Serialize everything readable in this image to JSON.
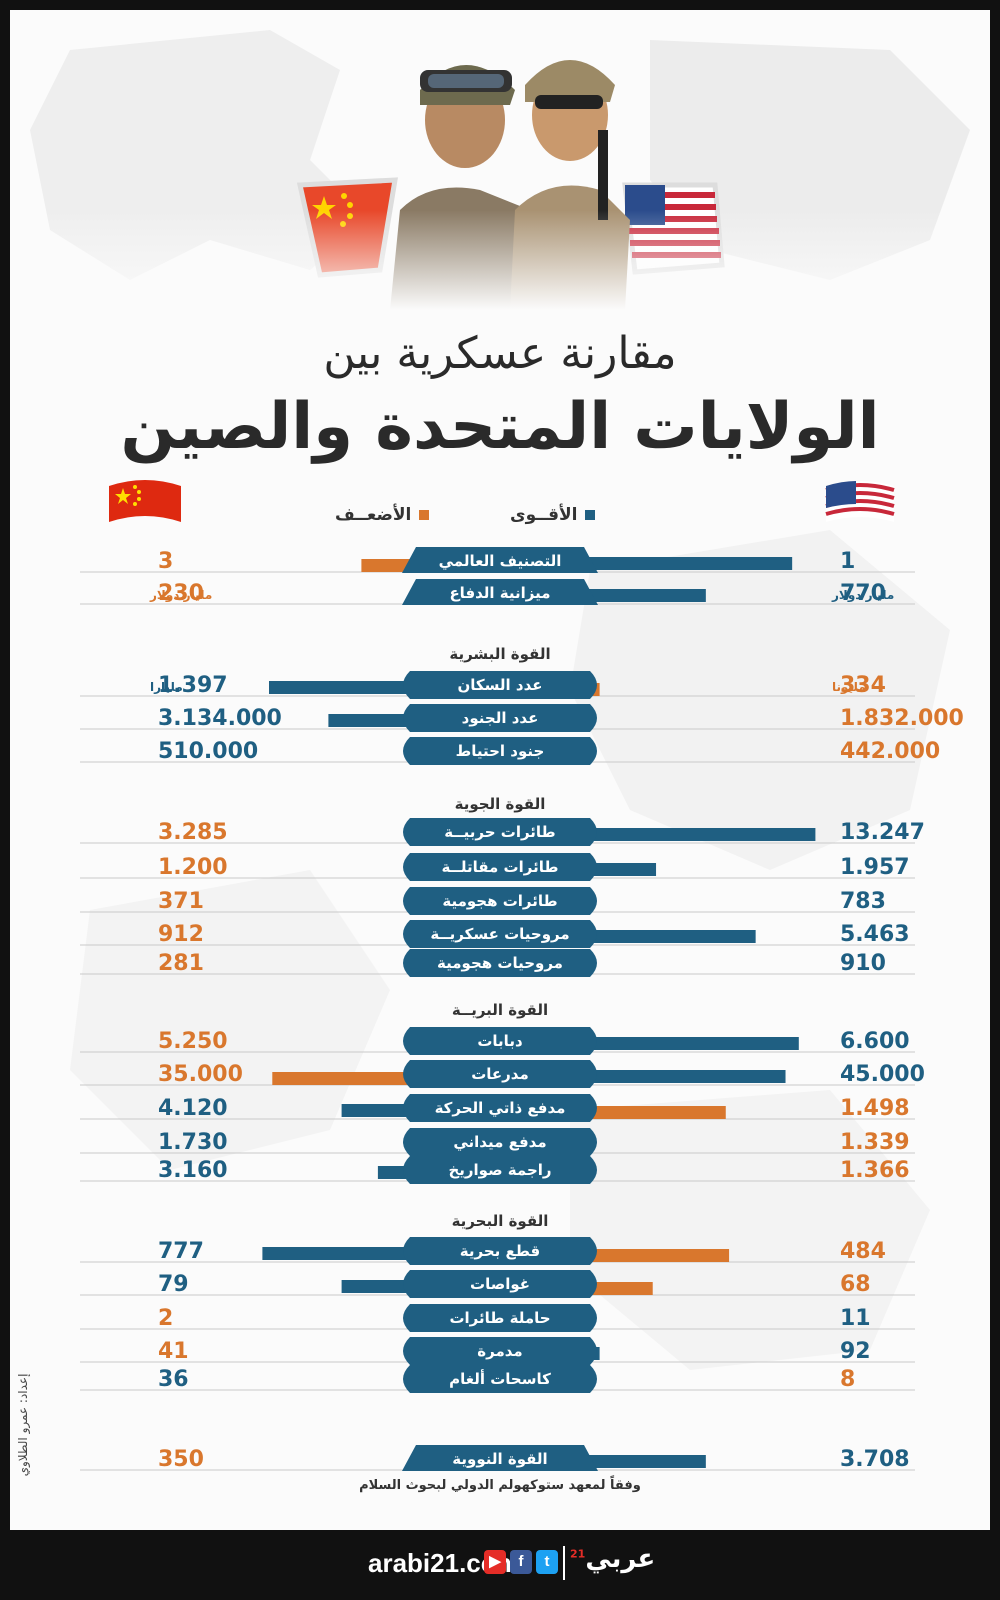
{
  "title": {
    "line1": "مقارنة عسكرية بين",
    "line2": "الولايات المتحدة والصين"
  },
  "legend": {
    "strong": "الأقــوى",
    "weak": "الأضعــف"
  },
  "colors": {
    "strong": "#1f5f82",
    "weak": "#d9772d",
    "label_strong": "#1f5f82",
    "label_weak": "#d9772d"
  },
  "countries": {
    "right_flag": "us-flag-icon",
    "left_flag": "china-flag-icon"
  },
  "chart_data": {
    "type": "bar",
    "sections": [
      {
        "title": "",
        "rows": [
          {
            "label": "التصنيف العالمي",
            "us": "1",
            "us_unit": "",
            "cn": "3",
            "cn_unit": "",
            "us_bar": 0.88,
            "cn_bar": 0.42,
            "us_strong": true,
            "cn_strong": false,
            "pill": "flat"
          },
          {
            "label": "ميزانية الدفاع",
            "us": "770",
            "us_unit": "مليار دولار",
            "cn": "230",
            "cn_unit": "مليار دولار",
            "us_bar": 0.62,
            "cn_bar": 0.14,
            "us_strong": true,
            "cn_strong": false,
            "pill": "flat"
          }
        ]
      },
      {
        "title": "القوة البشرية",
        "rows": [
          {
            "label": "عدد السكان",
            "us": "334",
            "us_unit": "مليونا",
            "cn": "1.397",
            "cn_unit": "مليارا",
            "us_bar": 0.3,
            "cn_bar": 0.7,
            "us_strong": false,
            "cn_strong": true,
            "pill": "round"
          },
          {
            "label": "عدد الجنود",
            "us": "1.832.000",
            "us_unit": "",
            "cn": "3.134.000",
            "cn_unit": "",
            "us_bar": 0.22,
            "cn_bar": 0.52,
            "us_strong": false,
            "cn_strong": true,
            "pill": "round"
          },
          {
            "label": "جنود احتياط",
            "us": "442.000",
            "us_unit": "",
            "cn": "510.000",
            "cn_unit": "",
            "us_bar": 0.19,
            "cn_bar": 0.26,
            "us_strong": false,
            "cn_strong": true,
            "pill": "round"
          }
        ]
      },
      {
        "title": "القوة الجوية",
        "rows": [
          {
            "label": "طائرات حربيــة",
            "us": "13.247",
            "us_unit": "",
            "cn": "3.285",
            "cn_unit": "",
            "us_bar": 0.95,
            "cn_bar": 0.28,
            "us_strong": true,
            "cn_strong": false,
            "pill": "round"
          },
          {
            "label": "طائرات مقاتلــة",
            "us": "1.957",
            "us_unit": "",
            "cn": "1.200",
            "cn_unit": "",
            "us_bar": 0.47,
            "cn_bar": 0.15,
            "us_strong": true,
            "cn_strong": false,
            "pill": "round"
          },
          {
            "label": "طائرات هجومية",
            "us": "783",
            "us_unit": "",
            "cn": "371",
            "cn_unit": "",
            "us_bar": 0.25,
            "cn_bar": 0.07,
            "us_strong": true,
            "cn_strong": false,
            "pill": "round"
          },
          {
            "label": "مروحيات عسكريــة",
            "us": "5.463",
            "us_unit": "",
            "cn": "912",
            "cn_unit": "",
            "us_bar": 0.77,
            "cn_bar": 0.14,
            "us_strong": true,
            "cn_strong": false,
            "pill": "round"
          },
          {
            "label": "مروحيات هجومية",
            "us": "910",
            "us_unit": "",
            "cn": "281",
            "cn_unit": "",
            "us_bar": 0.25,
            "cn_bar": 0.06,
            "us_strong": true,
            "cn_strong": false,
            "pill": "round"
          }
        ]
      },
      {
        "title": "القوة البريــة",
        "rows": [
          {
            "label": "دبابات",
            "us": "6.600",
            "us_unit": "",
            "cn": "5.250",
            "cn_unit": "",
            "us_bar": 0.9,
            "cn_bar": 0.25,
            "us_strong": true,
            "cn_strong": false,
            "pill": "round"
          },
          {
            "label": "مدرعات",
            "us": "45.000",
            "us_unit": "",
            "cn": "35.000",
            "cn_unit": "",
            "us_bar": 0.86,
            "cn_bar": 0.69,
            "us_strong": true,
            "cn_strong": false,
            "pill": "round"
          },
          {
            "label": "مدفع ذاتي الحركة",
            "us": "1.498",
            "us_unit": "",
            "cn": "4.120",
            "cn_unit": "",
            "us_bar": 0.68,
            "cn_bar": 0.48,
            "us_strong": false,
            "cn_strong": true,
            "pill": "round"
          },
          {
            "label": "مدفع ميداني",
            "us": "1.339",
            "us_unit": "",
            "cn": "1.730",
            "cn_unit": "",
            "us_bar": 0.23,
            "cn_bar": 0.25,
            "us_strong": false,
            "cn_strong": true,
            "pill": "round"
          },
          {
            "label": "راجمة صواريخ",
            "us": "1.366",
            "us_unit": "",
            "cn": "3.160",
            "cn_unit": "",
            "us_bar": 0.25,
            "cn_bar": 0.37,
            "us_strong": false,
            "cn_strong": true,
            "pill": "round"
          }
        ]
      },
      {
        "title": "القوة البحرية",
        "rows": [
          {
            "label": "قطع بحرية",
            "us": "484",
            "us_unit": "",
            "cn": "777",
            "cn_unit": "",
            "us_bar": 0.69,
            "cn_bar": 0.72,
            "us_strong": false,
            "cn_strong": true,
            "pill": "round"
          },
          {
            "label": "غواصات",
            "us": "68",
            "us_unit": "",
            "cn": "79",
            "cn_unit": "",
            "us_bar": 0.46,
            "cn_bar": 0.48,
            "us_strong": false,
            "cn_strong": true,
            "pill": "round"
          },
          {
            "label": "حاملة طائرات",
            "us": "11",
            "us_unit": "",
            "cn": "2",
            "cn_unit": "",
            "us_bar": 0.13,
            "cn_bar": 0.05,
            "us_strong": true,
            "cn_strong": false,
            "pill": "round"
          },
          {
            "label": "مدمرة",
            "us": "92",
            "us_unit": "",
            "cn": "41",
            "cn_unit": "",
            "us_bar": 0.3,
            "cn_bar": 0.17,
            "us_strong": true,
            "cn_strong": false,
            "pill": "round"
          },
          {
            "label": "كاسحات ألغام",
            "us": "8",
            "us_unit": "",
            "cn": "36",
            "cn_unit": "",
            "us_bar": 0.05,
            "cn_bar": 0.13,
            "us_strong": false,
            "cn_strong": true,
            "pill": "round"
          }
        ]
      },
      {
        "title": "",
        "rows": [
          {
            "label": "القوة النووية",
            "us": "3.708",
            "us_unit": "",
            "cn": "350",
            "cn_unit": "",
            "us_bar": 0.62,
            "cn_bar": 0.22,
            "us_strong": true,
            "cn_strong": false,
            "pill": "flat"
          }
        ]
      }
    ]
  },
  "source": "وفقاً لمعهد ستوكهولم الدولي لبحوث السلام",
  "designer_credit": "إعداد: عمرو الطلاوي",
  "footer": {
    "site": "arabi21.com",
    "brand": "عربي",
    "brand_sup": "21",
    "icons": [
      "youtube-icon",
      "facebook-icon",
      "twitter-icon"
    ]
  }
}
